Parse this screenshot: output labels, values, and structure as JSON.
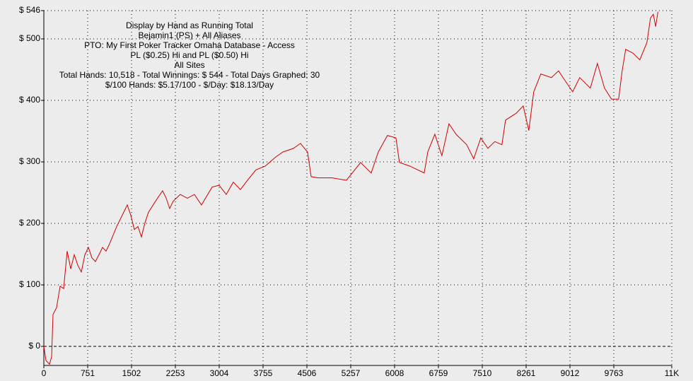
{
  "chart_data": {
    "type": "line",
    "title": "Display by Hand as Running Total",
    "subtitle": [
      "Bejamin1 (PS) + All Aliases",
      "PTO: My First Poker Tracker Omaha Database - Access",
      "PL ($0.25) Hi and PL ($0.50) Hi",
      "All Sites",
      "Total Hands: 10,518 - Total Winnings: $ 544 - Total Days Graphed: 30",
      "$/100 Hands: $5.17/100 - $/Day: $18.13/Day"
    ],
    "color": "#d00000",
    "x": [
      0,
      36,
      97,
      133,
      157,
      218,
      279,
      339,
      400,
      460,
      521,
      581,
      642,
      702,
      763,
      823,
      884,
      944,
      1005,
      1066,
      1126,
      1247,
      1368,
      1429,
      1490,
      1550,
      1611,
      1671,
      1732,
      1792,
      1913,
      2034,
      2095,
      2156,
      2216,
      2337,
      2458,
      2579,
      2700,
      2882,
      3003,
      3124,
      3245,
      3367,
      3488,
      3633,
      3790,
      3972,
      4093,
      4275,
      4396,
      4517,
      4578,
      4699,
      4941,
      5183,
      5425,
      5607,
      5728,
      5886,
      6031,
      6091,
      6273,
      6515,
      6576,
      6697,
      6818,
      6939,
      7060,
      7242,
      7363,
      7484,
      7605,
      7726,
      7847,
      7908,
      8089,
      8211,
      8307,
      8392,
      8513,
      8695,
      8816,
      8937,
      9058,
      9179,
      9361,
      9482,
      9603,
      9724,
      9845,
      9906,
      9966,
      10087,
      10208,
      10330,
      10391,
      10440,
      10480,
      10518
    ],
    "values": [
      0,
      -23,
      -29,
      -17,
      52,
      63,
      98,
      94,
      155,
      126,
      149,
      132,
      121,
      149,
      161,
      144,
      138,
      149,
      161,
      155,
      167,
      195,
      218,
      230,
      213,
      190,
      195,
      178,
      201,
      218,
      236,
      253,
      241,
      224,
      236,
      247,
      241,
      247,
      230,
      259,
      262,
      247,
      267,
      255,
      270,
      287,
      293,
      308,
      316,
      322,
      330,
      316,
      276,
      274,
      274,
      270,
      299,
      282,
      316,
      343,
      339,
      299,
      293,
      282,
      316,
      345,
      310,
      362,
      345,
      328,
      305,
      339,
      322,
      333,
      328,
      368,
      379,
      391,
      351,
      414,
      443,
      437,
      448,
      431,
      414,
      437,
      420,
      460,
      420,
      402,
      402,
      448,
      483,
      477,
      466,
      494,
      534,
      540,
      520,
      544
    ],
    "xlim": [
      0,
      10756
    ],
    "xticks": [
      0,
      751,
      1502,
      2253,
      3004,
      3755,
      4506,
      5257,
      6008,
      6759,
      7510,
      8261,
      9012,
      9763,
      {
        "value": 10756,
        "label": "11K"
      }
    ],
    "ylim": [
      -31,
      546
    ],
    "yticks": [
      {
        "value": 0,
        "label": "$ 0"
      },
      {
        "value": 100,
        "label": "$ 100"
      },
      {
        "value": 200,
        "label": "$ 200"
      },
      {
        "value": 300,
        "label": "$ 300"
      },
      {
        "value": 400,
        "label": "$ 400"
      },
      {
        "value": 500,
        "label": "$ 500"
      },
      {
        "value": 546,
        "label": "$ 546"
      }
    ],
    "grid": true
  }
}
